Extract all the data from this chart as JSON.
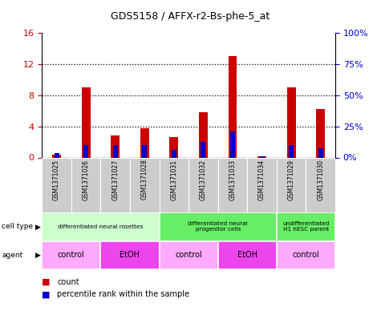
{
  "title": "GDS5158 / AFFX-r2-Bs-phe-5_at",
  "samples": [
    "GSM1371025",
    "GSM1371026",
    "GSM1371027",
    "GSM1371028",
    "GSM1371031",
    "GSM1371032",
    "GSM1371033",
    "GSM1371034",
    "GSM1371029",
    "GSM1371030"
  ],
  "counts": [
    0.4,
    9.0,
    2.8,
    3.8,
    2.6,
    5.8,
    13.0,
    0.2,
    9.0,
    6.2
  ],
  "percentiles_left": [
    0.6,
    1.6,
    1.6,
    1.6,
    1.0,
    2.0,
    3.4,
    0.2,
    1.6,
    1.2
  ],
  "ylim_left": [
    0,
    16
  ],
  "ylim_right": [
    0,
    100
  ],
  "yticks_left": [
    0,
    4,
    8,
    12,
    16
  ],
  "yticks_right": [
    0,
    25,
    50,
    75,
    100
  ],
  "yticklabels_left": [
    "0",
    "4",
    "8",
    "12",
    "16"
  ],
  "yticklabels_right": [
    "0%",
    "25%",
    "50%",
    "75%",
    "100%"
  ],
  "bar_color": "#cc0000",
  "percentile_color": "#0000cc",
  "bar_width": 0.3,
  "cell_type_groups": [
    {
      "label": "differentiated neural rosettes",
      "start": 0,
      "end": 4,
      "color": "#ccffcc"
    },
    {
      "label": "differentiated neural\nprogenitor cells",
      "start": 4,
      "end": 8,
      "color": "#66ee66"
    },
    {
      "label": "undifferentiated\nH1 hESC parent",
      "start": 8,
      "end": 10,
      "color": "#66ee66"
    }
  ],
  "agent_groups": [
    {
      "label": "control",
      "start": 0,
      "end": 2,
      "color": "#ffaaff"
    },
    {
      "label": "EtOH",
      "start": 2,
      "end": 4,
      "color": "#ee44ee"
    },
    {
      "label": "control",
      "start": 4,
      "end": 6,
      "color": "#ffaaff"
    },
    {
      "label": "EtOH",
      "start": 6,
      "end": 8,
      "color": "#ee44ee"
    },
    {
      "label": "control",
      "start": 8,
      "end": 10,
      "color": "#ffaaff"
    }
  ],
  "sample_bg_color": "#cccccc",
  "legend_count_color": "#cc0000",
  "legend_percentile_color": "#0000cc",
  "left_axis_color": "#cc0000",
  "right_axis_color": "#0000cc"
}
